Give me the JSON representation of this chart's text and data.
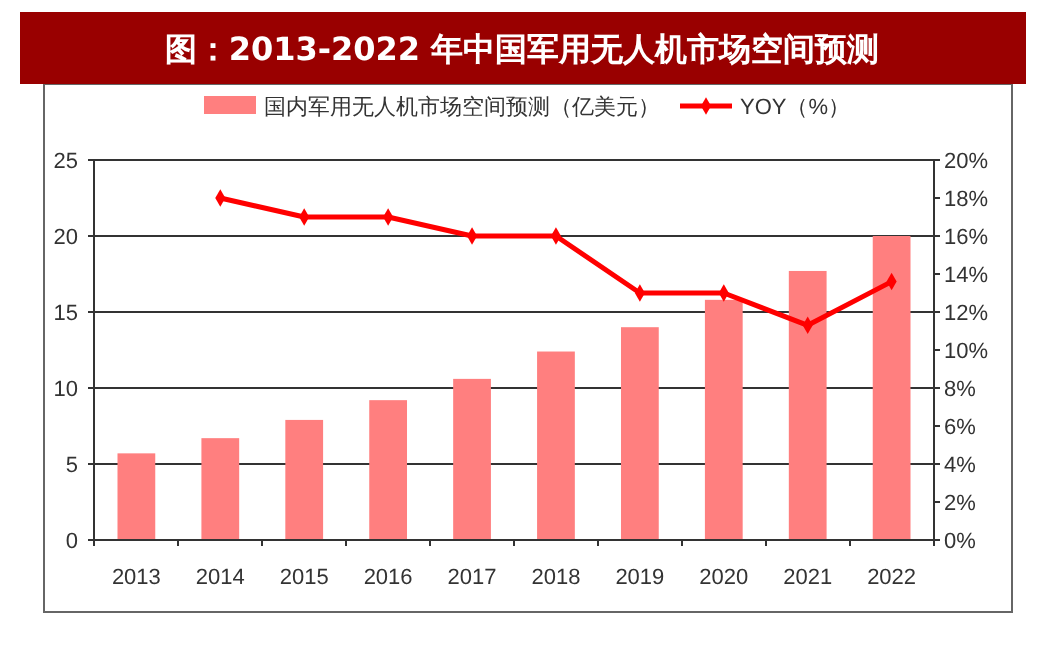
{
  "chart_data": {
    "type": "bar",
    "title": "图：2013-2022 年中国军用无人机市场空间预测",
    "categories": [
      "2013",
      "2014",
      "2015",
      "2016",
      "2017",
      "2018",
      "2019",
      "2020",
      "2021",
      "2022"
    ],
    "series": [
      {
        "name": "国内军用无人机市场空间预测（亿美元）",
        "color": "#ff7f7f",
        "values": [
          5.7,
          6.7,
          7.9,
          9.2,
          10.6,
          12.4,
          14.0,
          15.8,
          17.7,
          20.0
        ]
      },
      {
        "name": "YOY（%）",
        "type": "line",
        "axis": "y2",
        "color": "#ff0000",
        "marker": "diamond",
        "values": [
          null,
          18,
          17,
          17,
          16,
          16,
          13,
          13,
          11.3,
          13.6
        ]
      }
    ],
    "ylim": [
      0,
      25
    ],
    "yticks": [
      0,
      5,
      10,
      15,
      20,
      25
    ],
    "y2lim": [
      0,
      20
    ],
    "y2ticks": [
      {
        "value": 0,
        "label": "0%"
      },
      {
        "value": 2,
        "label": "2%"
      },
      {
        "value": 4,
        "label": "4%"
      },
      {
        "value": 6,
        "label": "6%"
      },
      {
        "value": 8,
        "label": "8%"
      },
      {
        "value": 10,
        "label": "10%"
      },
      {
        "value": 12,
        "label": "12%"
      },
      {
        "value": 14,
        "label": "14%"
      },
      {
        "value": 16,
        "label": "16%"
      },
      {
        "value": 18,
        "label": "18%"
      },
      {
        "value": 20,
        "label": "20%"
      }
    ],
    "grid": "y",
    "legend": "top"
  }
}
